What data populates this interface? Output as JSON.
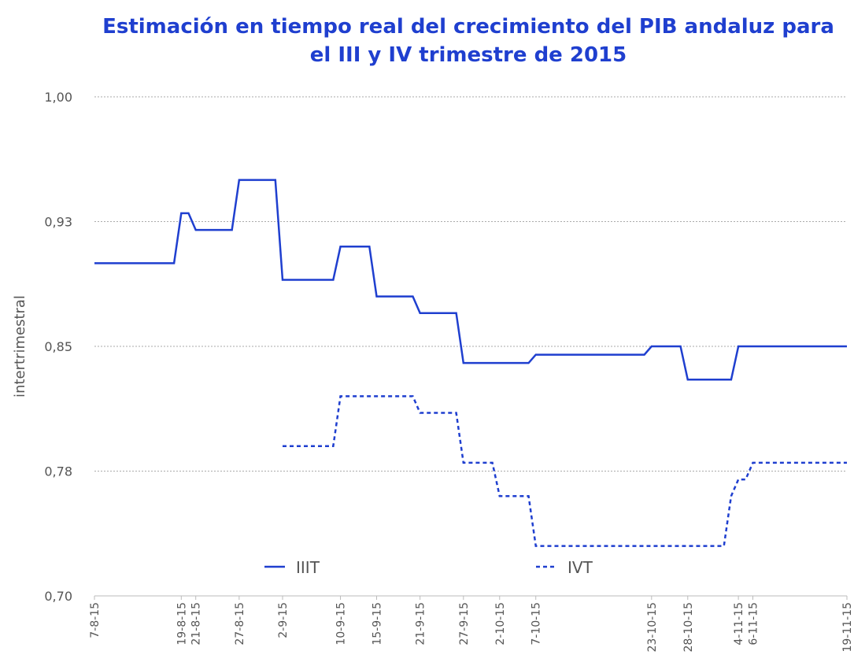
{
  "chart_data": {
    "type": "line",
    "title": "Estimación en tiempo real del crecimiento del PIB andaluz para el III y IV trimestre de 2015",
    "y_label": "intertrimestral",
    "x": [
      "2015-08-07",
      "2015-08-18",
      "2015-08-19",
      "2015-08-20",
      "2015-08-21",
      "2015-08-26",
      "2015-08-27",
      "2015-09-01",
      "2015-09-02",
      "2015-09-09",
      "2015-09-10",
      "2015-09-14",
      "2015-09-15",
      "2015-09-20",
      "2015-09-21",
      "2015-09-26",
      "2015-09-27",
      "2015-10-01",
      "2015-10-02",
      "2015-10-06",
      "2015-10-07",
      "2015-10-22",
      "2015-10-23",
      "2015-10-27",
      "2015-10-28",
      "2015-11-02",
      "2015-11-03",
      "2015-11-04",
      "2015-11-05",
      "2015-11-06",
      "2015-11-19"
    ],
    "series": [
      {
        "name": "IIIT",
        "color": "#1f3fcf",
        "line_style": "solid",
        "values": [
          0.9,
          0.9,
          0.93,
          0.93,
          0.92,
          0.92,
          0.95,
          0.95,
          0.89,
          0.89,
          0.91,
          0.91,
          0.88,
          0.88,
          0.87,
          0.87,
          0.84,
          0.84,
          0.84,
          0.84,
          0.845,
          0.845,
          0.85,
          0.85,
          0.83,
          0.83,
          0.83,
          0.85,
          0.85,
          0.85,
          0.85
        ]
      },
      {
        "name": "IVT",
        "color": "#1f3fcf",
        "line_style": "dashed",
        "values": [
          null,
          null,
          null,
          null,
          null,
          null,
          null,
          null,
          0.79,
          0.79,
          0.82,
          0.82,
          0.82,
          0.82,
          0.81,
          0.81,
          0.78,
          0.78,
          0.76,
          0.76,
          0.73,
          0.73,
          0.73,
          0.73,
          0.73,
          0.73,
          0.76,
          0.77,
          0.77,
          0.78,
          0.78
        ]
      }
    ],
    "xlim": [
      "2015-08-07",
      "2015-11-19"
    ],
    "xticks": [
      {
        "value": "2015-08-07",
        "label": "7-8-15"
      },
      {
        "value": "2015-08-19",
        "label": "19-8-15"
      },
      {
        "value": "2015-08-21",
        "label": "21-8-15"
      },
      {
        "value": "2015-08-27",
        "label": "27-8-15"
      },
      {
        "value": "2015-09-02",
        "label": "2-9-15"
      },
      {
        "value": "2015-09-10",
        "label": "10-9-15"
      },
      {
        "value": "2015-09-15",
        "label": "15-9-15"
      },
      {
        "value": "2015-09-21",
        "label": "21-9-15"
      },
      {
        "value": "2015-09-27",
        "label": "27-9-15"
      },
      {
        "value": "2015-10-02",
        "label": "2-10-15"
      },
      {
        "value": "2015-10-07",
        "label": "7-10-15"
      },
      {
        "value": "2015-10-23",
        "label": "23-10-15"
      },
      {
        "value": "2015-10-28",
        "label": "28-10-15"
      },
      {
        "value": "2015-11-04",
        "label": "4-11-15"
      },
      {
        "value": "2015-11-06",
        "label": "6-11-15"
      },
      {
        "value": "2015-11-19",
        "label": "19-11-15"
      }
    ],
    "ylim": [
      0.7,
      1.0
    ],
    "yticks": [
      {
        "value": 0.7,
        "label": "0,70"
      },
      {
        "value": 0.775,
        "label": "0,78"
      },
      {
        "value": 0.85,
        "label": "0,85"
      },
      {
        "value": 0.925,
        "label": "0,93"
      },
      {
        "value": 1.0,
        "label": "1,00"
      }
    ],
    "grid": true
  }
}
